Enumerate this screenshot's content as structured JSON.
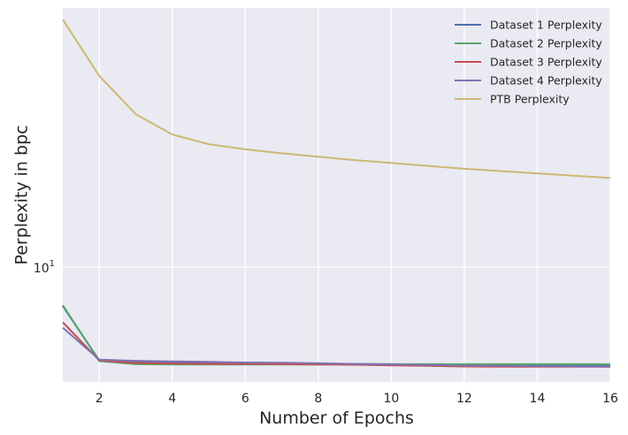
{
  "chart_data": {
    "type": "line",
    "title": "",
    "xlabel": "Number of Epochs",
    "ylabel": "Perplexity in bpc",
    "x": [
      1,
      2,
      3,
      4,
      5,
      6,
      7,
      8,
      9,
      10,
      11,
      12,
      13,
      14,
      15,
      16
    ],
    "xlim": [
      1,
      16
    ],
    "ylim": [
      4.55,
      59
    ],
    "yscale": "log",
    "xticks": [
      2,
      4,
      6,
      8,
      10,
      12,
      14,
      16
    ],
    "yticks": [
      {
        "value": 10,
        "base": "10",
        "exp": "1"
      }
    ],
    "grid": true,
    "legend": "top-right",
    "series": [
      {
        "name": "Dataset 1 Perplexity",
        "color": "#4c72b0",
        "values": [
          7.65,
          5.27,
          5.22,
          5.2,
          5.19,
          5.18,
          5.17,
          5.16,
          5.15,
          5.14,
          5.13,
          5.12,
          5.12,
          5.11,
          5.11,
          5.1
        ]
      },
      {
        "name": "Dataset 2 Perplexity",
        "color": "#55a868",
        "values": [
          7.7,
          5.25,
          5.14,
          5.13,
          5.13,
          5.13,
          5.13,
          5.13,
          5.14,
          5.14,
          5.14,
          5.14,
          5.14,
          5.14,
          5.14,
          5.14
        ]
      },
      {
        "name": "Dataset 3 Perplexity",
        "color": "#c44e52",
        "values": [
          6.85,
          5.27,
          5.18,
          5.16,
          5.15,
          5.15,
          5.14,
          5.13,
          5.12,
          5.1,
          5.08,
          5.06,
          5.05,
          5.05,
          5.05,
          5.05
        ]
      },
      {
        "name": "Dataset 4 Perplexity",
        "color": "#8172b2",
        "values": [
          6.6,
          5.3,
          5.26,
          5.24,
          5.22,
          5.2,
          5.19,
          5.17,
          5.15,
          5.13,
          5.11,
          5.09,
          5.08,
          5.07,
          5.06,
          5.05
        ]
      },
      {
        "name": "PTB Perplexity",
        "color": "#ccb974",
        "values": [
          54.5,
          37.0,
          28.5,
          24.8,
          23.2,
          22.4,
          21.8,
          21.3,
          20.8,
          20.4,
          20.0,
          19.6,
          19.3,
          19.0,
          18.7,
          18.4
        ]
      }
    ]
  }
}
